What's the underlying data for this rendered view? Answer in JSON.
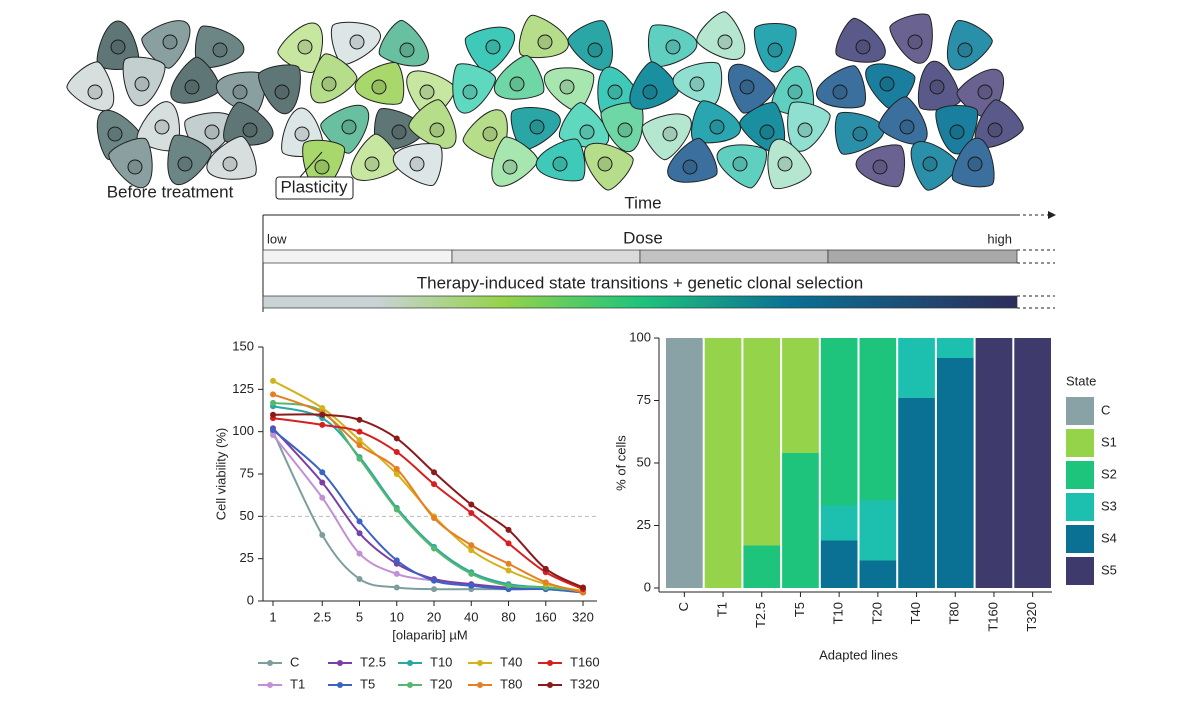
{
  "diagram": {
    "before": "Before treatment",
    "plasticity": "Plasticity",
    "time": "Time",
    "low": "low",
    "dose": "Dose",
    "high": "high",
    "transitions": "Therapy-induced state transitions + genetic clonal selection"
  },
  "chart_data": [
    {
      "type": "line",
      "xlabel": "[olaparib] µM",
      "ylabel": "Cell viability  (%)",
      "log_x": true,
      "x": [
        1,
        2.5,
        5,
        10,
        20,
        40,
        80,
        160,
        320
      ],
      "xlim": [
        0.83,
        415
      ],
      "xticks": [
        1,
        2.5,
        5,
        10,
        20,
        40,
        80,
        160,
        320
      ],
      "ylim": [
        0,
        150
      ],
      "yticks": [
        0,
        25,
        50,
        75,
        100,
        125,
        150
      ],
      "hline": 50,
      "legend": "bottom",
      "series": [
        {
          "name": "C",
          "color": "#7e9e9e",
          "values": [
            100,
            39,
            13,
            8,
            7,
            7,
            7,
            7,
            5
          ]
        },
        {
          "name": "T1",
          "color": "#c38fd6",
          "values": [
            98,
            61,
            28,
            16,
            12,
            9,
            8,
            8,
            6
          ]
        },
        {
          "name": "T2.5",
          "color": "#7b3fa6",
          "values": [
            102,
            70,
            40,
            22,
            13,
            10,
            8,
            8,
            6
          ]
        },
        {
          "name": "T5",
          "color": "#3b62c4",
          "values": [
            101,
            76,
            47,
            24,
            12,
            9,
            7,
            7,
            5
          ]
        },
        {
          "name": "T10",
          "color": "#2aa6a6",
          "values": [
            115,
            108,
            85,
            55,
            32,
            17,
            10,
            8,
            6
          ]
        },
        {
          "name": "T20",
          "color": "#55b86e",
          "values": [
            117,
            112,
            84,
            54,
            31,
            16,
            9,
            8,
            6
          ]
        },
        {
          "name": "T40",
          "color": "#d4b21b",
          "values": [
            130,
            114,
            95,
            75,
            50,
            30,
            18,
            10,
            6
          ]
        },
        {
          "name": "T80",
          "color": "#e67e22",
          "values": [
            122,
            111,
            92,
            78,
            49,
            33,
            22,
            11,
            5
          ]
        },
        {
          "name": "T160",
          "color": "#d62020",
          "values": [
            108,
            104,
            100,
            88,
            69,
            52,
            34,
            17,
            7
          ]
        },
        {
          "name": "T320",
          "color": "#8b1a1a",
          "values": [
            110,
            110,
            107,
            96,
            76,
            57,
            42,
            19,
            8
          ]
        }
      ]
    },
    {
      "type": "bar",
      "stacked": true,
      "xlabel": "Adapted lines",
      "ylabel": "% of cells",
      "legend": "right",
      "legend_title": "State",
      "categories": [
        "C",
        "T1",
        "T2.5",
        "T5",
        "T10",
        "T20",
        "T40",
        "T80",
        "T160",
        "T320"
      ],
      "ylim": [
        0,
        100
      ],
      "yticks": [
        0,
        25,
        50,
        75,
        100
      ],
      "series": [
        {
          "name": "C",
          "color": "#88a2a6",
          "values": [
            100,
            0,
            0,
            0,
            0,
            0,
            0,
            0,
            0,
            0
          ]
        },
        {
          "name": "S1",
          "color": "#94d34a",
          "values": [
            0,
            100,
            83,
            46,
            0,
            0,
            0,
            0,
            0,
            0
          ]
        },
        {
          "name": "S2",
          "color": "#1fc47c",
          "values": [
            0,
            0,
            17,
            54,
            67,
            65,
            0,
            0,
            0,
            0
          ]
        },
        {
          "name": "S3",
          "color": "#1dbfae",
          "values": [
            0,
            0,
            0,
            0,
            14,
            24,
            24,
            8,
            0,
            0
          ]
        },
        {
          "name": "S4",
          "color": "#0a7094",
          "values": [
            0,
            0,
            0,
            0,
            19,
            11,
            76,
            92,
            0,
            0
          ]
        },
        {
          "name": "S5",
          "color": "#3e3a6b",
          "values": [
            0,
            0,
            0,
            0,
            0,
            0,
            0,
            0,
            100,
            100
          ]
        }
      ]
    }
  ]
}
